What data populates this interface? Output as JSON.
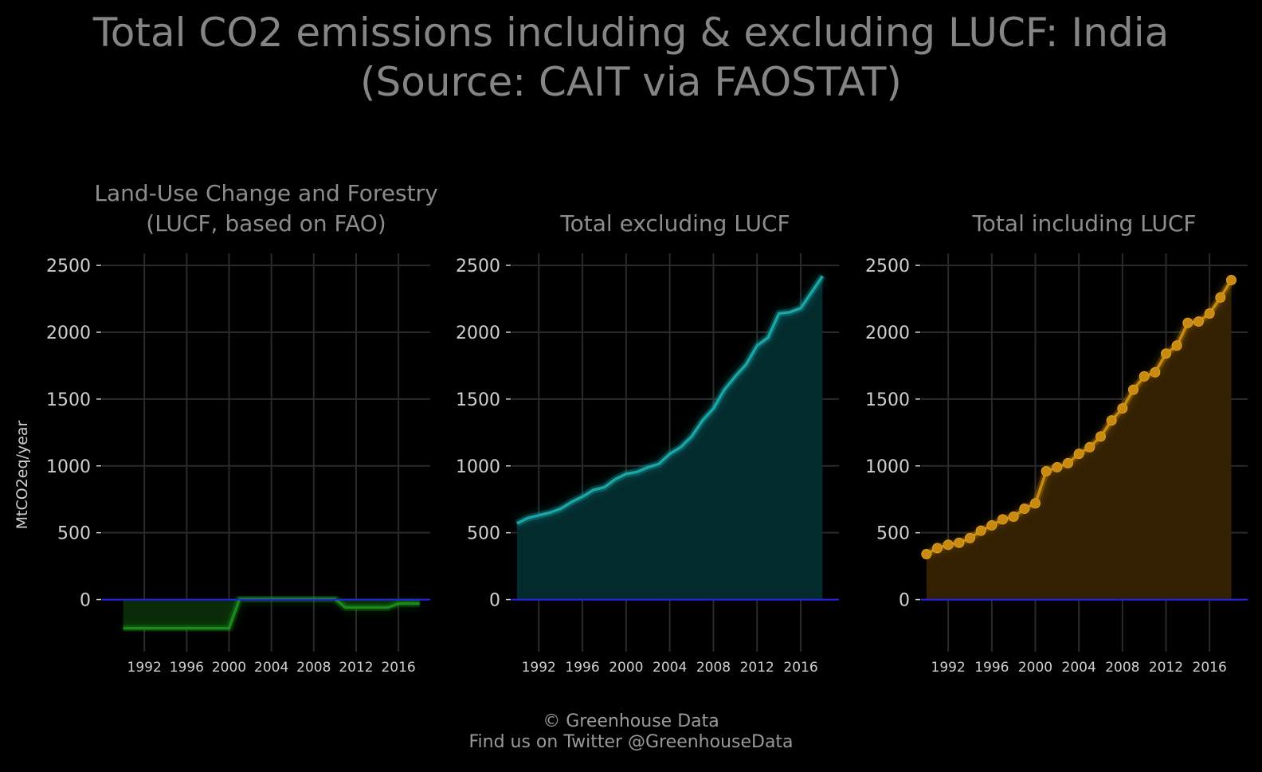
{
  "title_line1": "Total CO2 emissions including & excluding LUCF: India",
  "title_line2": "(Source: CAIT via FAOSTAT)",
  "footer": {
    "line1": "© Greenhouse Data",
    "line2": "Find us on Twitter @GreenhouseData"
  },
  "chart_data": [
    {
      "type": "area",
      "title_lines": [
        "Land-Use Change and Forestry",
        "(LUCF, based on FAO)"
      ],
      "ylabel": "MtCO2eq/year",
      "xlabel": "",
      "x_ticks": [
        1992,
        1996,
        2000,
        2004,
        2008,
        2012,
        2016
      ],
      "y_ticks": [
        0,
        500,
        1000,
        1500,
        2000,
        2500
      ],
      "xlim": [
        1988,
        2019
      ],
      "ylim": [
        -390,
        2590
      ],
      "grid": true,
      "color": "#1a8a1a",
      "fill_color": "#0a2a0a",
      "markers": false,
      "zero_line_color": "#2222ee",
      "series": [
        {
          "x": [
            1990,
            1991,
            1992,
            1993,
            1994,
            1995,
            1996,
            1997,
            1998,
            1999,
            2000,
            2001,
            2002,
            2003,
            2004,
            2005,
            2006,
            2007,
            2008,
            2009,
            2010,
            2011,
            2012,
            2013,
            2014,
            2015,
            2016,
            2017,
            2018
          ],
          "values": [
            -215,
            -215,
            -215,
            -215,
            -215,
            -215,
            -215,
            -215,
            -215,
            -215,
            -215,
            5,
            5,
            5,
            5,
            5,
            5,
            5,
            5,
            5,
            5,
            -60,
            -60,
            -60,
            -60,
            -60,
            -30,
            -30,
            -30
          ]
        }
      ]
    },
    {
      "type": "area",
      "title_lines": [
        "Total excluding LUCF"
      ],
      "ylabel": "",
      "xlabel": "",
      "x_ticks": [
        1992,
        1996,
        2000,
        2004,
        2008,
        2012,
        2016
      ],
      "y_ticks": [
        0,
        500,
        1000,
        1500,
        2000,
        2500
      ],
      "xlim": [
        1989.5,
        2019.5
      ],
      "ylim": [
        -390,
        2590
      ],
      "grid": true,
      "color": "#1aa6a6",
      "fill_color": "#032a2d",
      "markers": false,
      "zero_line_color": "#2222ee",
      "series": [
        {
          "x": [
            1990,
            1991,
            1992,
            1993,
            1994,
            1995,
            1996,
            1997,
            1998,
            1999,
            2000,
            2001,
            2002,
            2003,
            2004,
            2005,
            2006,
            2007,
            2008,
            2009,
            2010,
            2011,
            2012,
            2013,
            2014,
            2015,
            2016,
            2017,
            2018
          ],
          "values": [
            570,
            610,
            630,
            650,
            680,
            730,
            770,
            820,
            840,
            900,
            940,
            955,
            990,
            1015,
            1090,
            1140,
            1220,
            1340,
            1430,
            1570,
            1670,
            1760,
            1900,
            1960,
            2140,
            2150,
            2180,
            2300,
            2420
          ]
        }
      ]
    },
    {
      "type": "area",
      "title_lines": [
        "Total including LUCF"
      ],
      "ylabel": "",
      "xlabel": "",
      "x_ticks": [
        1992,
        1996,
        2000,
        2004,
        2008,
        2012,
        2016
      ],
      "y_ticks": [
        0,
        500,
        1000,
        1500,
        2000,
        2500
      ],
      "xlim": [
        1989.5,
        2019.5
      ],
      "ylim": [
        -390,
        2590
      ],
      "grid": true,
      "color": "#c98a12",
      "fill_color": "#332002",
      "markers": true,
      "zero_line_color": "#2222ee",
      "series": [
        {
          "x": [
            1990,
            1991,
            1992,
            1993,
            1994,
            1995,
            1996,
            1997,
            1998,
            1999,
            2000,
            2001,
            2002,
            2003,
            2004,
            2005,
            2006,
            2007,
            2008,
            2009,
            2010,
            2011,
            2012,
            2013,
            2014,
            2015,
            2016,
            2017,
            2018
          ],
          "values": [
            340,
            385,
            410,
            425,
            460,
            515,
            555,
            600,
            620,
            680,
            720,
            960,
            990,
            1020,
            1090,
            1140,
            1220,
            1340,
            1430,
            1570,
            1670,
            1700,
            1840,
            1900,
            2070,
            2080,
            2140,
            2260,
            2390
          ]
        }
      ]
    }
  ]
}
